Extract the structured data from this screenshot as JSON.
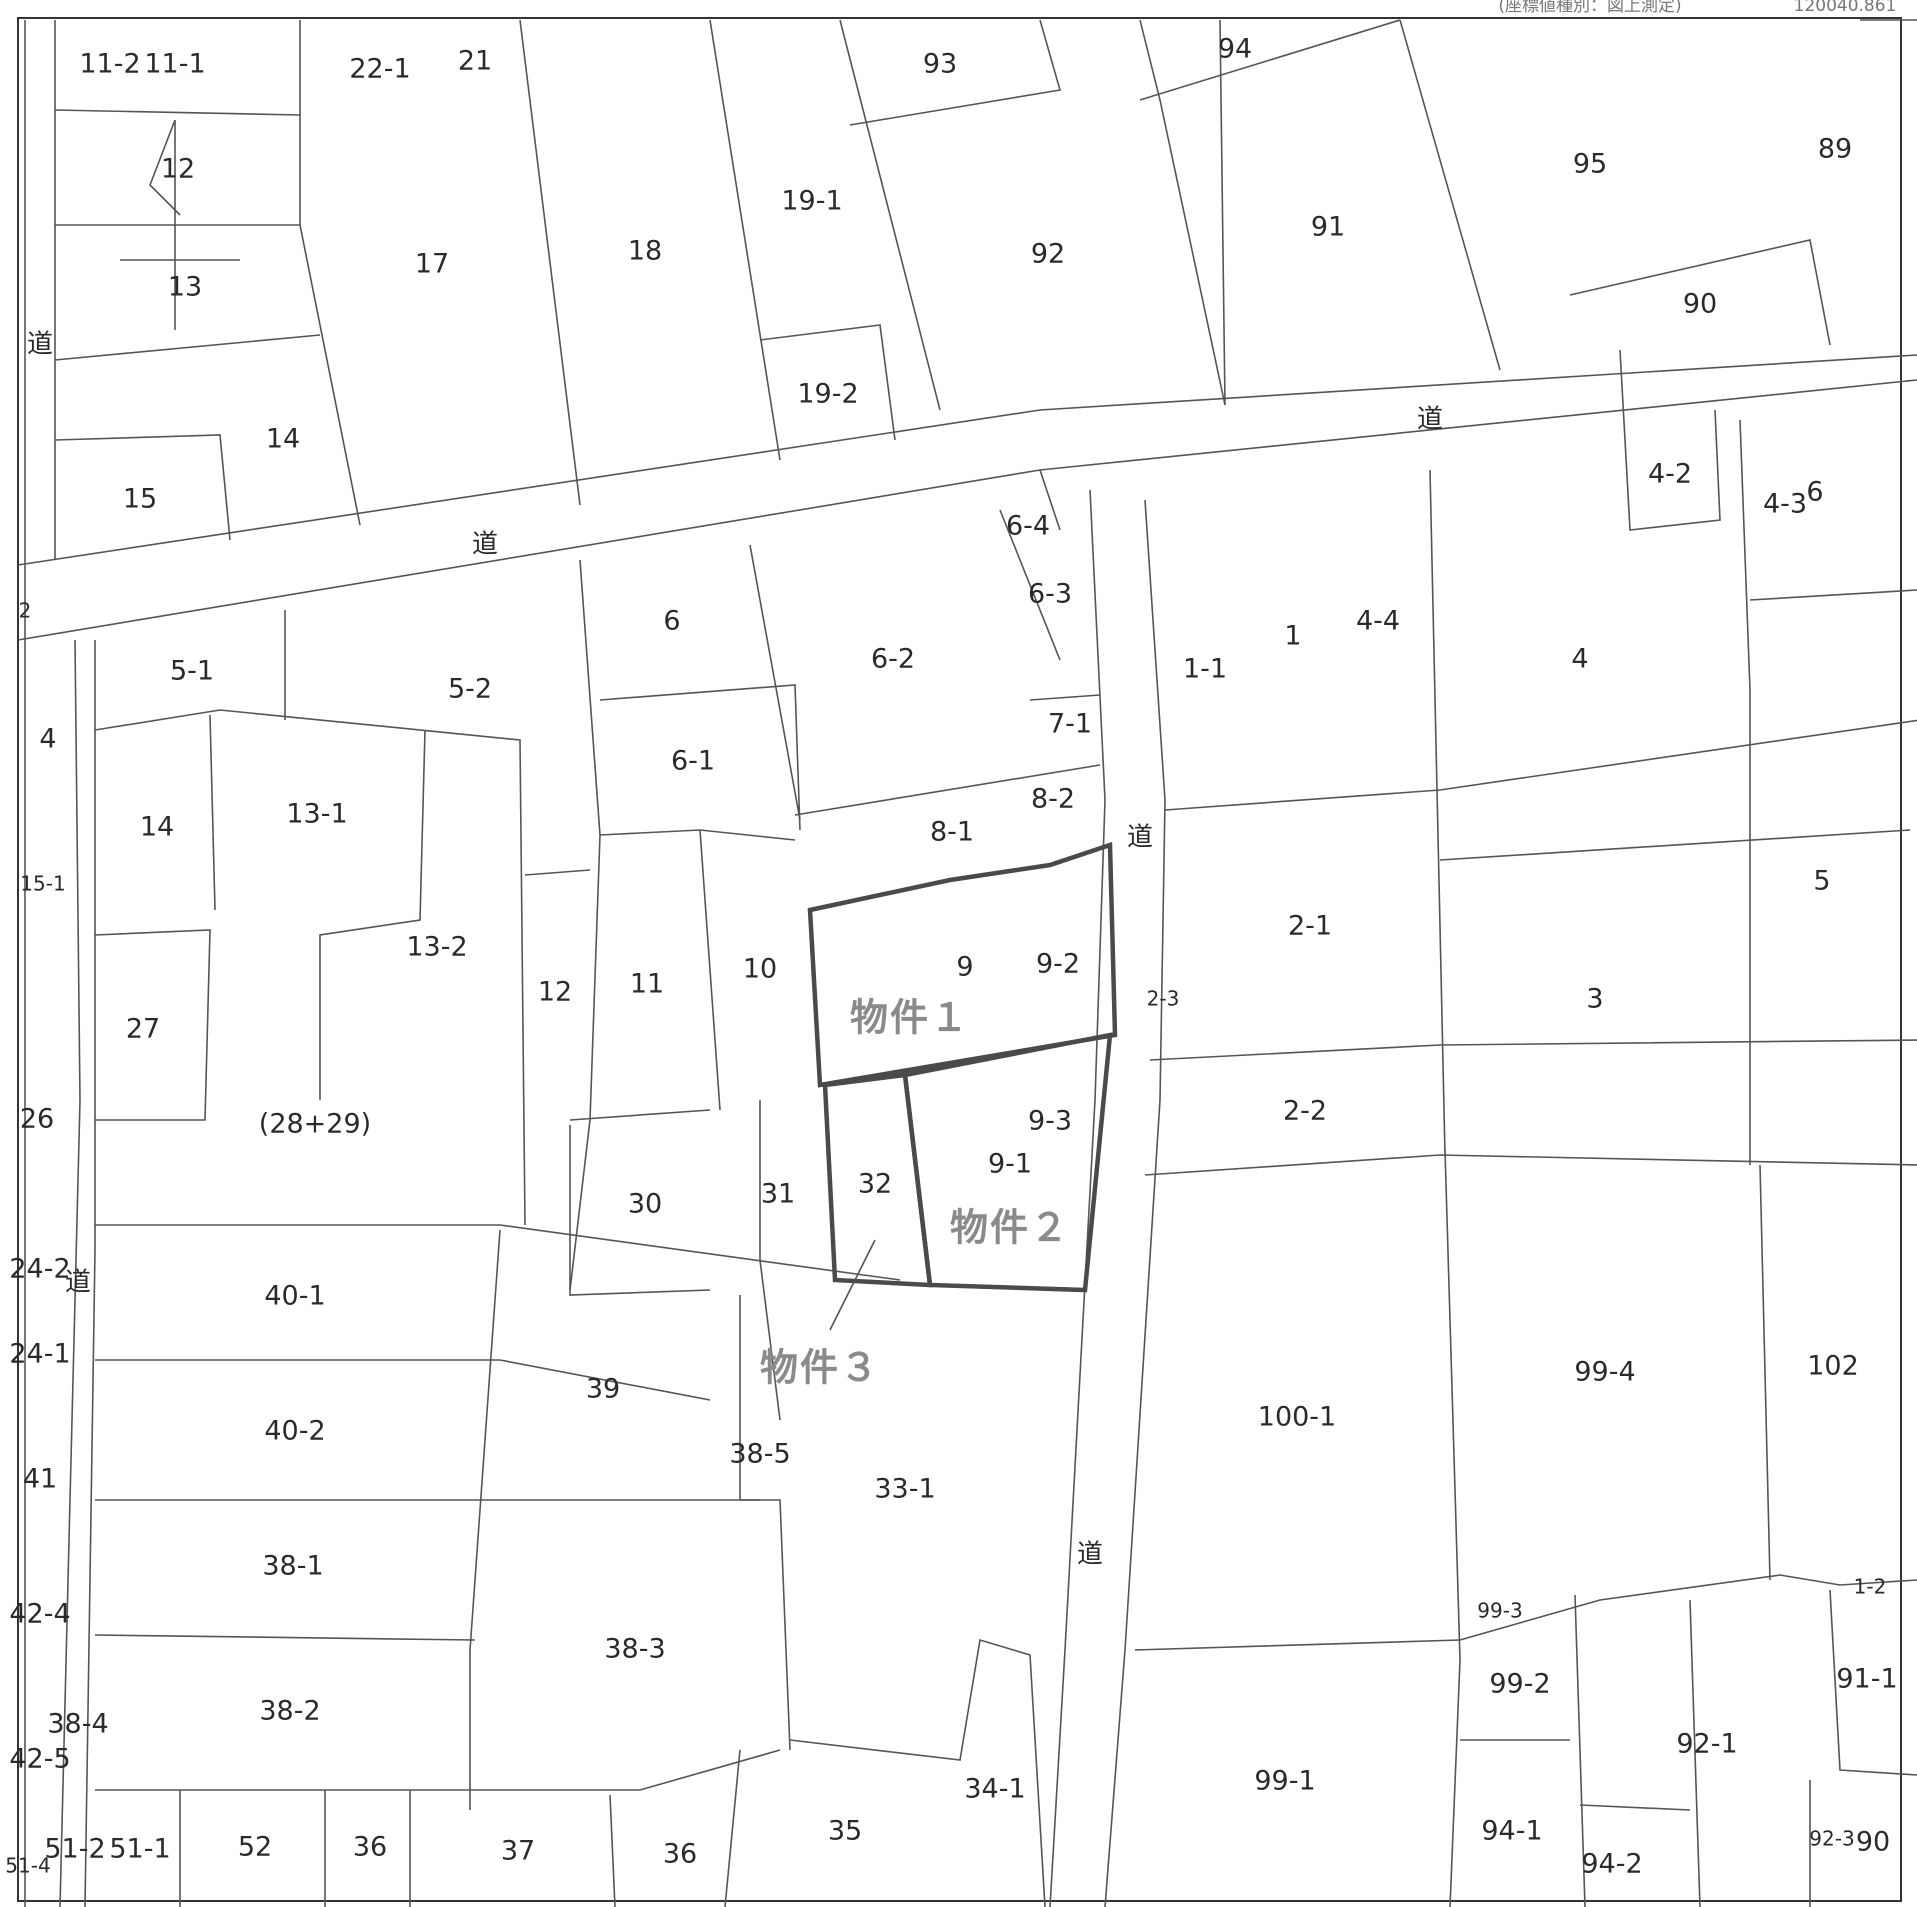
{
  "header": {
    "coord_note": "(座標値種別：図上測定)",
    "coord_value": "120040.861"
  },
  "road_label": "道",
  "properties": [
    "物件１",
    "物件２",
    "物件３"
  ],
  "parcels": {
    "p11_2": "11-2",
    "p11_1": "11-1",
    "p22_1": "22-1",
    "p21": "21",
    "p93": "93",
    "p94": "94",
    "p95": "95",
    "p89": "89",
    "p12a": "12",
    "p13a": "13",
    "p17": "17",
    "p18": "18",
    "p19_1": "19-1",
    "p19_2": "19-2",
    "p92": "92",
    "p91": "91",
    "p90": "90",
    "p14a": "14",
    "p15a": "15",
    "p6_4": "6-4",
    "p6_3": "6-3",
    "p4_2": "4-2",
    "p4_3": "4-3",
    "p6b": "6",
    "p6": "6",
    "p6_2": "6-2",
    "p5_1": "5-1",
    "p5_2": "5-2",
    "p1_1": "1-1",
    "p1": "1",
    "p4_4": "4-4",
    "p4r": "4",
    "p4l": "4",
    "p7_1": "7-1",
    "p6_1": "6-1",
    "p8_2": "8-2",
    "p8_1": "8-1",
    "p14b": "14",
    "p13_1": "13-1",
    "p15_1": "15-1",
    "p13_2": "13-2",
    "p12b": "12",
    "p11": "11",
    "p10": "10",
    "p9": "9",
    "p9_2": "9-2",
    "p2_1": "2-1",
    "p5": "5",
    "p3": "3",
    "p27": "27",
    "p2_3": "2-3",
    "p26": "26",
    "p28_29": "(28+29)",
    "p9_3": "9-3",
    "p2_2": "2-2",
    "p9_1": "9-1",
    "p32": "32",
    "p31": "31",
    "p30": "30",
    "p24_2": "24-2",
    "p40_1": "40-1",
    "p24_1": "24-1",
    "p39": "39",
    "p99_4": "99-4",
    "p102": "102",
    "p100_1": "100-1",
    "p40_2": "40-2",
    "p38_5": "38-5",
    "p41": "41",
    "p33_1": "33-1",
    "p38_1": "38-1",
    "p42_4": "42-4",
    "p38_3": "38-3",
    "p91_1": "91-1",
    "p99_2": "99-2",
    "p38_2": "38-2",
    "p38_4": "38-4",
    "p42_5": "42-5",
    "p92_1": "92-1",
    "p34_1": "34-1",
    "p99_1": "99-1",
    "p35": "35",
    "p51_2": "51-2",
    "p51_1": "51-1",
    "p52": "52",
    "p36a": "36",
    "p37": "37",
    "p36b": "36",
    "p94_1": "94-1",
    "p94_2": "94-2",
    "p92_3": "92-3",
    "p90b": "90",
    "p51_4": "51-4",
    "p6s": "6",
    "p2s": "2",
    "p1_2": "1-2",
    "p99_3": "99-3"
  }
}
